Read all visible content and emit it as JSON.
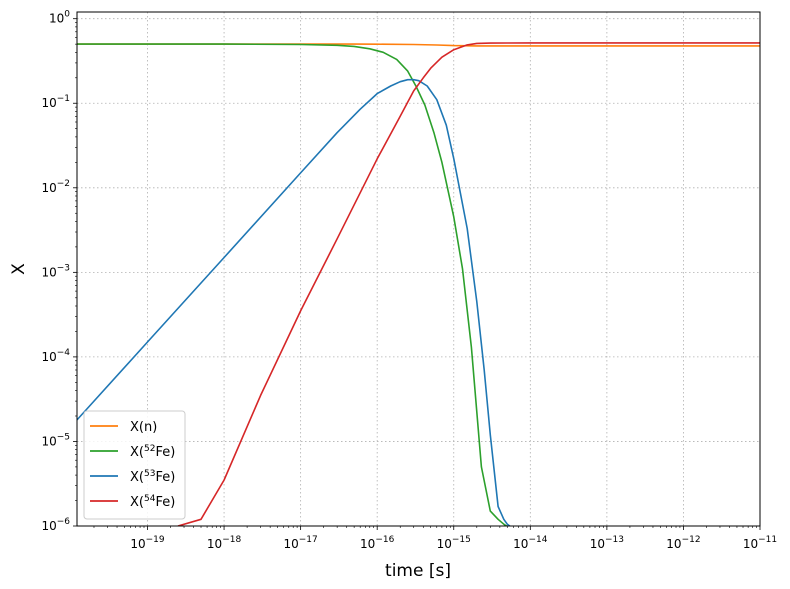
{
  "chart_data": {
    "type": "line",
    "xlabel": "time [s]",
    "ylabel": "X",
    "xscale": "log",
    "yscale": "log",
    "xlim": [
      1.2e-20,
      1e-11
    ],
    "ylim": [
      1e-06,
      1.2
    ],
    "grid": true,
    "legend_position": "lower-left",
    "x_ticks": [
      {
        "value": 1e-19,
        "base": "10",
        "exp": "−19"
      },
      {
        "value": 1e-18,
        "base": "10",
        "exp": "−18"
      },
      {
        "value": 1e-17,
        "base": "10",
        "exp": "−17"
      },
      {
        "value": 1e-16,
        "base": "10",
        "exp": "−16"
      },
      {
        "value": 1e-15,
        "base": "10",
        "exp": "−15"
      },
      {
        "value": 1e-14,
        "base": "10",
        "exp": "−14"
      },
      {
        "value": 1e-13,
        "base": "10",
        "exp": "−13"
      },
      {
        "value": 1e-12,
        "base": "10",
        "exp": "−12"
      },
      {
        "value": 1e-11,
        "base": "10",
        "exp": "−11"
      }
    ],
    "y_ticks": [
      {
        "value": 1,
        "base": "10",
        "exp": "0"
      },
      {
        "value": 0.1,
        "base": "10",
        "exp": "−1"
      },
      {
        "value": 0.01,
        "base": "10",
        "exp": "−2"
      },
      {
        "value": 0.001,
        "base": "10",
        "exp": "−3"
      },
      {
        "value": 0.0001,
        "base": "10",
        "exp": "−4"
      },
      {
        "value": 1e-05,
        "base": "10",
        "exp": "−5"
      },
      {
        "value": 1e-06,
        "base": "10",
        "exp": "−6"
      }
    ],
    "series": [
      {
        "name": "X(n)",
        "label_pre": "X(n)",
        "label_sup": "",
        "label_post": "",
        "color": "#ff7f0e",
        "x": [
          1.2e-20,
          1e-19,
          1e-18,
          1e-17,
          5e-17,
          1e-16,
          3e-16,
          6e-16,
          1e-15,
          2e-15,
          3e-15,
          1e-14,
          1e-13,
          1e-12,
          1e-11
        ],
        "y": [
          0.5,
          0.5,
          0.5,
          0.5,
          0.5,
          0.499,
          0.495,
          0.488,
          0.48,
          0.477,
          0.477,
          0.477,
          0.477,
          0.477,
          0.477
        ]
      },
      {
        "name": "X(52Fe)",
        "label_pre": "X(",
        "label_sup": "52",
        "label_post": "Fe)",
        "color": "#2ca02c",
        "x": [
          1.2e-20,
          1e-18,
          1e-17,
          3e-17,
          5e-17,
          8e-17,
          1.2e-16,
          1.8e-16,
          2.5e-16,
          3.2e-16,
          4.2e-16,
          5.5e-16,
          7e-16,
          8.5e-16,
          1e-15,
          1.3e-15,
          1.7e-15,
          2.3e-15,
          3e-15,
          3.8e-15,
          4.5e-15,
          4.9e-15
        ],
        "y": [
          0.5,
          0.5,
          0.495,
          0.485,
          0.47,
          0.44,
          0.4,
          0.33,
          0.24,
          0.16,
          0.095,
          0.045,
          0.02,
          0.009,
          0.0045,
          0.0011,
          0.00013,
          5e-06,
          1.5e-06,
          1.2e-06,
          1.05e-06,
          1e-06
        ]
      },
      {
        "name": "X(53Fe)",
        "label_pre": "X(",
        "label_sup": "53",
        "label_post": "Fe)",
        "color": "#1f77b4",
        "x": [
          1.2e-20,
          1e-19,
          1e-18,
          1e-17,
          3e-17,
          6e-17,
          1e-16,
          1.5e-16,
          2e-16,
          2.5e-16,
          3e-16,
          3.5e-16,
          4.5e-16,
          6e-16,
          8e-16,
          1e-15,
          1.5e-15,
          2e-15,
          2.5e-15,
          3e-15,
          3.8e-15,
          4.5e-15,
          5e-15,
          5.4e-15
        ],
        "y": [
          1.8e-05,
          0.00015,
          0.0015,
          0.015,
          0.045,
          0.085,
          0.13,
          0.16,
          0.18,
          0.19,
          0.19,
          0.185,
          0.16,
          0.11,
          0.055,
          0.022,
          0.0033,
          0.00045,
          7e-05,
          1.2e-05,
          1.7e-06,
          1.2e-06,
          1.05e-06,
          1e-06
        ]
      },
      {
        "name": "X(54Fe)",
        "label_pre": "X(",
        "label_sup": "54",
        "label_post": "Fe)",
        "color": "#d62728",
        "x": [
          2.5e-19,
          5e-19,
          1e-18,
          3e-18,
          1e-17,
          3e-17,
          1e-16,
          2e-16,
          3e-16,
          4e-16,
          5e-16,
          7e-16,
          1e-15,
          1.5e-15,
          2e-15,
          3e-15,
          5e-15,
          1e-14,
          1e-13,
          1e-12,
          1e-11
        ],
        "y": [
          1e-06,
          1.2e-06,
          3.5e-06,
          3.5e-05,
          0.00035,
          0.0025,
          0.022,
          0.07,
          0.14,
          0.2,
          0.26,
          0.35,
          0.43,
          0.49,
          0.51,
          0.515,
          0.516,
          0.517,
          0.517,
          0.517,
          0.517
        ]
      }
    ]
  }
}
